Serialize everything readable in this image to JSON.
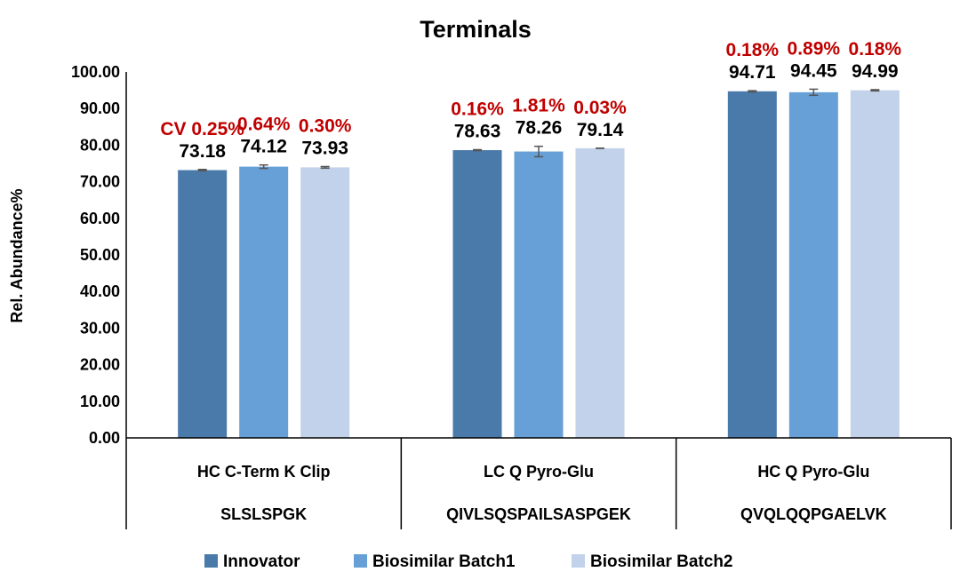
{
  "chart_data": {
    "type": "bar",
    "title": "Terminals",
    "ylabel": "Rel. Abundance%",
    "xlabel": "",
    "ylim": [
      0,
      100
    ],
    "yticks": [
      "0.00",
      "10.00",
      "20.00",
      "30.00",
      "40.00",
      "50.00",
      "60.00",
      "70.00",
      "80.00",
      "90.00",
      "100.00"
    ],
    "ytick_values": [
      0,
      10,
      20,
      30,
      40,
      50,
      60,
      70,
      80,
      90,
      100
    ],
    "categories": [
      {
        "name": "HC C-Term K Clip",
        "peptide": "SLSLSPGK"
      },
      {
        "name": "LC Q Pyro-Glu",
        "peptide": "QIVLSQSPAILSASPGEK"
      },
      {
        "name": "HC Q Pyro-Glu",
        "peptide": "QVQLQQPGAELVK"
      }
    ],
    "series": [
      {
        "name": "Innovator",
        "color": "#4a7aaa",
        "values": [
          73.18,
          78.63,
          94.71
        ],
        "labels": [
          "73.18",
          "78.63",
          "94.71"
        ],
        "errors": [
          0.18,
          0.13,
          0.17
        ],
        "cv": [
          "CV 0.25%",
          "0.16%",
          "0.18%"
        ]
      },
      {
        "name": "Biosimilar Batch1",
        "color": "#66a0d6",
        "values": [
          74.12,
          78.26,
          94.45
        ],
        "labels": [
          "74.12",
          "78.26",
          "94.45"
        ],
        "errors": [
          0.47,
          1.42,
          0.84
        ],
        "cv": [
          "0.64%",
          "1.81%",
          "0.89%"
        ]
      },
      {
        "name": "Biosimilar Batch2",
        "color": "#c1d2ea",
        "values": [
          73.93,
          79.14,
          94.99
        ],
        "labels": [
          "73.93",
          "79.14",
          "94.99"
        ],
        "errors": [
          0.22,
          0.02,
          0.17
        ],
        "cv": [
          "0.30%",
          "0.03%",
          "0.18%"
        ]
      }
    ],
    "grid": false,
    "legend": "bottom",
    "cv_color": "#c00000"
  }
}
